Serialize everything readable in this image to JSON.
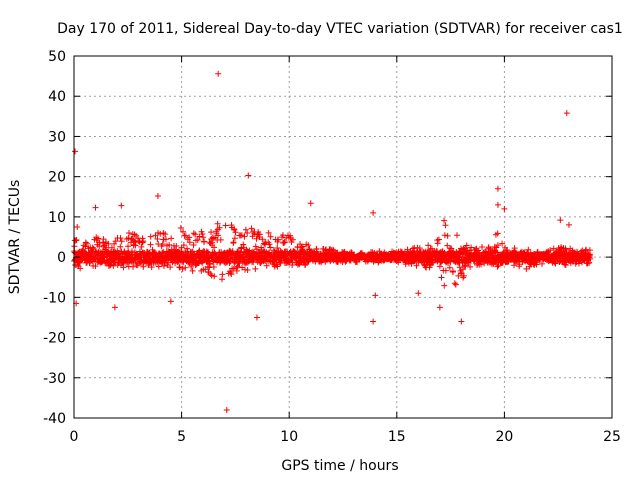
{
  "chart_data": {
    "type": "scatter",
    "title": "Day 170 of 2011, Sidereal Day-to-day VTEC variation (SDTVAR) for receiver cas1",
    "xlabel": "GPS time / hours",
    "ylabel": "SDTVAR / TECUs",
    "xlim": [
      0,
      25
    ],
    "ylim": [
      -40,
      50
    ],
    "x_ticks": [
      0,
      5,
      10,
      15,
      20,
      25
    ],
    "y_ticks": [
      -40,
      -30,
      -20,
      -10,
      0,
      10,
      20,
      30,
      40,
      50
    ],
    "x_tick_labels": [
      "0",
      "5",
      "10",
      "15",
      "20",
      "25"
    ],
    "y_tick_labels": [
      "-40",
      "-30",
      "-20",
      "-10",
      "0",
      "10",
      "20",
      "30",
      "40",
      "50"
    ],
    "grid": true,
    "marker": "+",
    "color": "#ff0000",
    "series": [
      {
        "name": "SDTVAR",
        "envelope": [
          [
            0.0,
            -4,
            6
          ],
          [
            0.5,
            -2,
            3.5
          ],
          [
            1.0,
            -2.5,
            5
          ],
          [
            1.5,
            -2.5,
            5
          ],
          [
            2.0,
            -3,
            5
          ],
          [
            2.5,
            -2.5,
            6
          ],
          [
            3.0,
            -2.5,
            6
          ],
          [
            3.5,
            -2.5,
            6
          ],
          [
            4.0,
            -2.5,
            6.5
          ],
          [
            4.5,
            -3,
            6
          ],
          [
            5.0,
            -3.5,
            8
          ],
          [
            5.5,
            -3.5,
            6.5
          ],
          [
            6.0,
            -4,
            6.5
          ],
          [
            6.5,
            -5,
            8
          ],
          [
            6.8,
            -6,
            11
          ],
          [
            7.0,
            -5,
            10
          ],
          [
            7.5,
            -4,
            7
          ],
          [
            8.0,
            -3.5,
            7.5
          ],
          [
            8.5,
            -3.5,
            8
          ],
          [
            9.0,
            -3,
            6.5
          ],
          [
            9.5,
            -2.5,
            5.5
          ],
          [
            10.0,
            -2.5,
            5.5
          ],
          [
            10.5,
            -2,
            3.5
          ],
          [
            11.0,
            -2,
            3
          ],
          [
            11.5,
            -1.5,
            2.5
          ],
          [
            12.0,
            -1.5,
            2
          ],
          [
            12.5,
            -1.2,
            1.5
          ],
          [
            13.0,
            -1.2,
            1.2
          ],
          [
            13.5,
            -1.2,
            1.3
          ],
          [
            14.0,
            -1.5,
            1.5
          ],
          [
            14.5,
            -1.5,
            1.5
          ],
          [
            15.0,
            -1.5,
            1.5
          ],
          [
            15.5,
            -2,
            2
          ],
          [
            16.0,
            -2.5,
            2.5
          ],
          [
            16.5,
            -3,
            3
          ],
          [
            17.0,
            -4,
            5
          ],
          [
            17.2,
            -8,
            10
          ],
          [
            17.5,
            -4,
            5
          ],
          [
            17.8,
            -10,
            7
          ],
          [
            18.0,
            -6,
            4
          ],
          [
            18.5,
            -2,
            2.5
          ],
          [
            19.0,
            -2,
            2.5
          ],
          [
            19.5,
            -2,
            3
          ],
          [
            19.7,
            -2.5,
            8
          ],
          [
            20.0,
            -2,
            3
          ],
          [
            20.5,
            -2.5,
            2.5
          ],
          [
            21.0,
            -3,
            2
          ],
          [
            21.5,
            -2,
            1.5
          ],
          [
            22.0,
            -1.5,
            1.5
          ],
          [
            22.5,
            -2,
            3
          ],
          [
            22.8,
            -2,
            4
          ],
          [
            23.0,
            -2,
            3
          ],
          [
            23.5,
            -2,
            2
          ],
          [
            24.0,
            -1.5,
            2
          ]
        ],
        "outliers": [
          [
            0.05,
            26.3
          ],
          [
            0.1,
            -11.5
          ],
          [
            0.15,
            7.5
          ],
          [
            1.0,
            12.3
          ],
          [
            1.9,
            -12.5
          ],
          [
            2.2,
            12.8
          ],
          [
            3.9,
            15.2
          ],
          [
            4.5,
            -11.0
          ],
          [
            6.7,
            45.6
          ],
          [
            7.1,
            -38.0
          ],
          [
            8.1,
            20.3
          ],
          [
            8.5,
            -15.0
          ],
          [
            11.0,
            13.4
          ],
          [
            13.9,
            -16.0
          ],
          [
            13.9,
            11.0
          ],
          [
            14.0,
            -9.5
          ],
          [
            16.0,
            -9.0
          ],
          [
            17.0,
            -12.5
          ],
          [
            18.0,
            -16.0
          ],
          [
            19.7,
            17.0
          ],
          [
            19.7,
            13.0
          ],
          [
            20.0,
            12.0
          ],
          [
            22.9,
            35.8
          ],
          [
            22.6,
            9.2
          ],
          [
            23.0,
            8.0
          ]
        ]
      }
    ]
  }
}
